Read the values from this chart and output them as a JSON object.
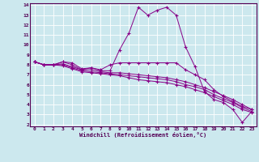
{
  "xlabel": "Windchill (Refroidissement éolien,°C)",
  "bg_color": "#cce8ee",
  "line_color": "#880088",
  "xlim": [
    -0.5,
    23.5
  ],
  "ylim": [
    1.8,
    14.2
  ],
  "xticks": [
    0,
    1,
    2,
    3,
    4,
    5,
    6,
    7,
    8,
    9,
    10,
    11,
    12,
    13,
    14,
    15,
    16,
    17,
    18,
    19,
    20,
    21,
    22,
    23
  ],
  "yticks": [
    2,
    3,
    4,
    5,
    6,
    7,
    8,
    9,
    10,
    11,
    12,
    13,
    14
  ],
  "series1": [
    8.3,
    8.0,
    8.0,
    8.3,
    8.0,
    7.5,
    7.7,
    7.4,
    7.4,
    9.5,
    11.2,
    13.8,
    13.0,
    13.5,
    13.8,
    13.0,
    9.8,
    7.8,
    5.3,
    4.5,
    4.2,
    3.5,
    2.2,
    3.3
  ],
  "series2": [
    8.3,
    8.0,
    8.0,
    8.3,
    8.2,
    7.6,
    7.7,
    7.5,
    8.0,
    8.2,
    8.2,
    8.2,
    8.2,
    8.2,
    8.2,
    8.2,
    7.5,
    7.0,
    6.5,
    5.5,
    4.8,
    4.3,
    3.8,
    3.5
  ],
  "series3": [
    8.3,
    8.0,
    8.0,
    8.1,
    7.8,
    7.5,
    7.5,
    7.3,
    7.2,
    7.2,
    7.1,
    7.0,
    6.9,
    6.8,
    6.7,
    6.5,
    6.3,
    6.0,
    5.7,
    5.3,
    4.9,
    4.5,
    4.0,
    3.5
  ],
  "series4": [
    8.3,
    8.0,
    8.0,
    8.0,
    7.7,
    7.4,
    7.3,
    7.2,
    7.1,
    7.0,
    6.9,
    6.8,
    6.7,
    6.6,
    6.5,
    6.3,
    6.0,
    5.8,
    5.5,
    5.0,
    4.6,
    4.2,
    3.7,
    3.3
  ],
  "series5": [
    8.3,
    8.0,
    8.0,
    7.9,
    7.6,
    7.3,
    7.2,
    7.1,
    7.0,
    6.9,
    6.7,
    6.5,
    6.4,
    6.3,
    6.2,
    6.0,
    5.8,
    5.5,
    5.2,
    4.8,
    4.4,
    4.0,
    3.5,
    3.2
  ]
}
